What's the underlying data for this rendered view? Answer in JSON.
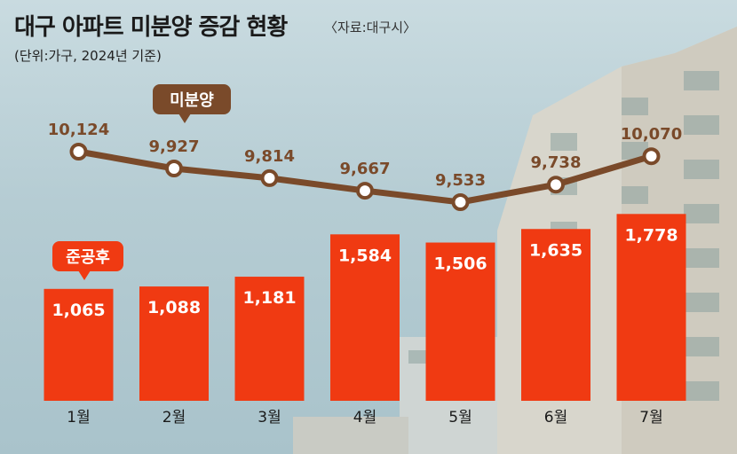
{
  "title": "대구 아파트 미분양 증감 현황",
  "source": "〈자료:대구시〉",
  "unit_note": "(단위:가구, 2024년 기준)",
  "colors": {
    "bar": "#f03a12",
    "line": "#7a4a2a",
    "text_dark": "#1a1a1a"
  },
  "chart_data": {
    "type": "bar",
    "title": "대구 아파트 미분양 증감 현황",
    "categories": [
      "1월",
      "2월",
      "3월",
      "4월",
      "5월",
      "6월",
      "7월"
    ],
    "series": [
      {
        "name": "준공후",
        "type": "bar",
        "values": [
          1065,
          1088,
          1181,
          1584,
          1506,
          1635,
          1778
        ],
        "labels": [
          "1,065",
          "1,088",
          "1,181",
          "1,584",
          "1,506",
          "1,635",
          "1,778"
        ]
      },
      {
        "name": "미분양",
        "type": "line",
        "values": [
          10124,
          9927,
          9814,
          9667,
          9533,
          9738,
          10070
        ],
        "labels": [
          "10,124",
          "9,927",
          "9,814",
          "9,667",
          "9,533",
          "9,738",
          "10,070"
        ]
      }
    ]
  }
}
